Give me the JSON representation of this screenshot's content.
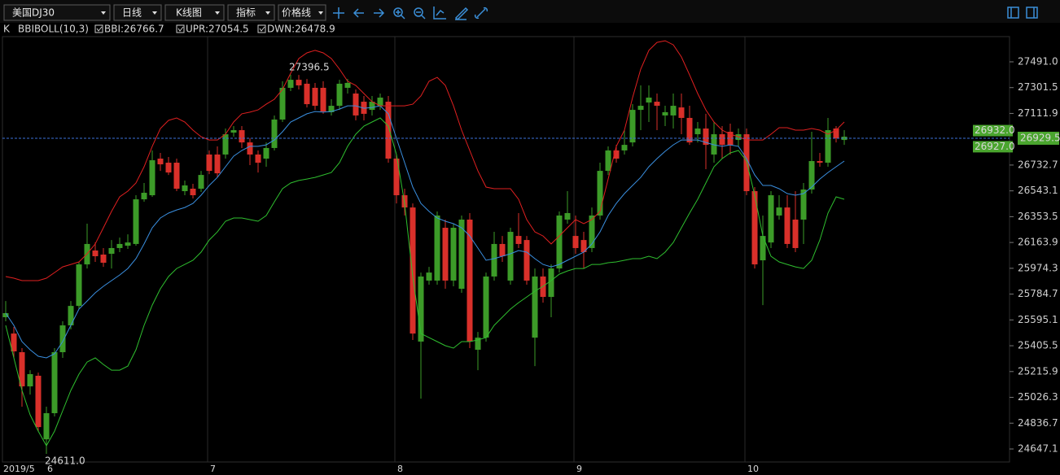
{
  "toolbar": {
    "symbol": "美国DJ30",
    "period": "日线",
    "chart_kind": "K线图",
    "indicator": "指标",
    "price_line": "价格线"
  },
  "chart_data": {
    "type": "candlestick",
    "main_label": "K",
    "indicator": "BBIBOLL(10,3)",
    "x_label": "2019/5",
    "up_color": "#3c9b28",
    "down_color": "#d9302a",
    "categories": [
      null,
      null,
      null,
      null,
      null,
      "6",
      null,
      null,
      null,
      null,
      null,
      null,
      null,
      null,
      null,
      null,
      null,
      null,
      null,
      null,
      null,
      null,
      null,
      null,
      null,
      "7",
      null,
      null,
      null,
      null,
      null,
      null,
      null,
      null,
      null,
      null,
      null,
      null,
      null,
      null,
      null,
      null,
      null,
      null,
      null,
      null,
      null,
      null,
      "8",
      null,
      null,
      null,
      null,
      null,
      null,
      null,
      null,
      null,
      null,
      null,
      null,
      null,
      null,
      null,
      null,
      null,
      null,
      null,
      null,
      null,
      "9",
      null,
      null,
      null,
      null,
      null,
      null,
      null,
      null,
      null,
      null,
      null,
      null,
      null,
      null,
      null,
      null,
      null,
      null,
      null,
      null,
      "10",
      null,
      null,
      null,
      null,
      null,
      null,
      null,
      null,
      null,
      null,
      null,
      null
    ],
    "open": [
      25615,
      25495,
      25358,
      25107,
      25185,
      24718,
      24910,
      25358,
      25555,
      25698,
      26003,
      26105,
      26075,
      26081,
      26123,
      26140,
      26153,
      26481,
      26511,
      26780,
      26750,
      26750,
      26541,
      26559,
      26559,
      26810,
      26810,
      26810,
      26971,
      26989,
      26899,
      26810,
      26780,
      26858,
      27067,
      27300,
      27359,
      27330,
      27300,
      27300,
      27121,
      27168,
      27300,
      27258,
      27198,
      27138,
      27168,
      27198,
      26780,
      26511,
      26421,
      25436,
      25884,
      25884,
      26272,
      25884,
      25824,
      26332,
      25376,
      25465,
      25914,
      26153,
      25884,
      26212,
      26182,
      25465,
      25914,
      25764,
      25973,
      26332,
      26212,
      26182,
      26123,
      26362,
      26690,
      26840,
      26840,
      26899,
      27138,
      27192,
      27198,
      27097,
      27097,
      27156,
      27079,
      26959,
      27001,
      26810,
      26959,
      26977,
      26917,
      26959,
      26541,
      26033,
      26164,
      26362,
      26421,
      26332,
      26332,
      26553,
      26762,
      26750,
      27001,
      26917
    ],
    "high": [
      25734,
      25543,
      25388,
      25226,
      25208,
      24958,
      25388,
      25585,
      25734,
      26021,
      26302,
      26164,
      26123,
      26182,
      26200,
      26224,
      26511,
      26601,
      26840,
      26822,
      26792,
      26780,
      26619,
      26595,
      26690,
      26840,
      26870,
      27001,
      27019,
      27019,
      26929,
      26840,
      26899,
      27097,
      27348,
      27396.5,
      27395,
      27365,
      27336,
      27348,
      27216,
      27359,
      27365,
      27288,
      27240,
      27240,
      27258,
      27240,
      26810,
      26559,
      26451,
      25943,
      25985,
      26392,
      26332,
      26302,
      26362,
      26380,
      25507,
      25943,
      26242,
      26212,
      26272,
      26380,
      26212,
      25973,
      25973,
      26003,
      26392,
      26541,
      26362,
      26242,
      26421,
      26750,
      26870,
      26881,
      26989,
      27180,
      27318,
      27318,
      27258,
      27168,
      27258,
      27258,
      27168,
      27049,
      27109,
      27049,
      27019,
      27037,
      27001,
      27001,
      26571,
      26362,
      26541,
      26511,
      26511,
      26541,
      26601,
      26977,
      26822,
      27079,
      27019,
      26989
    ],
    "low": [
      25585,
      25316,
      24958,
      25047,
      24778,
      24611,
      24886,
      25316,
      25525,
      25675,
      25973,
      26021,
      25985,
      25973,
      26093,
      26117,
      26140,
      26463,
      26499,
      26690,
      26660,
      26541,
      26511,
      26487,
      26535,
      26666,
      26642,
      26780,
      26941,
      26858,
      26732,
      26678,
      26720,
      26840,
      27049,
      27276,
      27288,
      27156,
      27138,
      27109,
      27097,
      27138,
      27258,
      27061,
      27061,
      27097,
      27138,
      26750,
      26451,
      26362,
      25448,
      25017,
      25854,
      25854,
      25824,
      25842,
      25794,
      25388,
      25226,
      25436,
      25884,
      26021,
      25854,
      26123,
      25854,
      25256,
      25722,
      25615,
      25943,
      26302,
      26081,
      25973,
      26093,
      26332,
      26660,
      26750,
      26810,
      26870,
      26989,
      27049,
      26989,
      27019,
      27001,
      26959,
      26881,
      26899,
      26702,
      26750,
      26780,
      26810,
      26870,
      26511,
      25973,
      25704,
      26123,
      26332,
      26123,
      26093,
      26153,
      26523,
      26720,
      26720,
      26899,
      26881
    ],
    "close": [
      25645,
      25364,
      25107,
      25197,
      24808,
      24910,
      25358,
      25555,
      25698,
      26003,
      26153,
      26063,
      26015,
      26123,
      26153,
      26164,
      26481,
      26529,
      26768,
      26738,
      26678,
      26559,
      26583,
      26511,
      26660,
      26690,
      26672,
      26959,
      26989,
      26899,
      26810,
      26750,
      26858,
      27067,
      27300,
      27359,
      27318,
      27180,
      27168,
      27126,
      27168,
      27330,
      27336,
      27097,
      27109,
      27198,
      27228,
      26780,
      26511,
      26421,
      25495,
      25914,
      25943,
      26362,
      25884,
      26272,
      26332,
      25436,
      25465,
      25914,
      26153,
      26063,
      26242,
      26153,
      25884,
      25914,
      25764,
      25973,
      26362,
      26380,
      26123,
      26093,
      26362,
      26690,
      26840,
      26780,
      26881,
      27138,
      27168,
      27228,
      27168,
      27121,
      27168,
      27079,
      26899,
      27001,
      26881,
      26959,
      26881,
      26881,
      26959,
      26541,
      26003,
      26212,
      26511,
      26421,
      26153,
      26123,
      26553,
      26762,
      26750,
      26989,
      26929,
      26941
    ],
    "series": [
      {
        "name": "BBI:26766.7",
        "color": "#3a8fe0",
        "values": [
          25645,
          25555,
          25436,
          25376,
          25328,
          25316,
          25346,
          25436,
          25555,
          25675,
          25734,
          25794,
          25842,
          25884,
          25925,
          25973,
          26045,
          26153,
          26272,
          26344,
          26380,
          26403,
          26421,
          26451,
          26511,
          26583,
          26642,
          26720,
          26798,
          26840,
          26870,
          26870,
          26881,
          26917,
          26977,
          27049,
          27079,
          27109,
          27126,
          27121,
          27126,
          27144,
          27168,
          27168,
          27150,
          27156,
          27168,
          27109,
          26929,
          26750,
          26571,
          26451,
          26392,
          26344,
          26320,
          26302,
          26272,
          26212,
          26123,
          26033,
          26045,
          26063,
          26081,
          26105,
          26093,
          26045,
          26003,
          25985,
          26003,
          26033,
          26063,
          26093,
          26153,
          26242,
          26362,
          26451,
          26523,
          26583,
          26642,
          26720,
          26780,
          26834,
          26881,
          26917,
          26917,
          26917,
          26899,
          26881,
          26870,
          26881,
          26870,
          26780,
          26660,
          26583,
          26583,
          26559,
          26523,
          26511,
          26523,
          26571,
          26630,
          26678,
          26720,
          26762
        ]
      },
      {
        "name": "UPR:27054.5",
        "color": "#e02020",
        "values": [
          25914,
          25902,
          25884,
          25884,
          25884,
          25902,
          25943,
          25985,
          26003,
          26021,
          26081,
          26153,
          26272,
          26392,
          26499,
          26541,
          26601,
          26720,
          26870,
          27001,
          27061,
          27079,
          27049,
          26989,
          26941,
          26917,
          26917,
          26959,
          27049,
          27109,
          27121,
          27138,
          27180,
          27216,
          27288,
          27407,
          27515,
          27557,
          27575,
          27557,
          27515,
          27437,
          27348,
          27318,
          27258,
          27198,
          27168,
          27168,
          27168,
          27168,
          27180,
          27240,
          27348,
          27377,
          27318,
          27168,
          26989,
          26840,
          26690,
          26571,
          26559,
          26559,
          26559,
          26481,
          26332,
          26242,
          26212,
          26153,
          26212,
          26272,
          26332,
          26302,
          26332,
          26392,
          26630,
          26870,
          26989,
          27228,
          27437,
          27575,
          27634,
          27646,
          27616,
          27527,
          27395,
          27258,
          27138,
          27049,
          26989,
          26959,
          26941,
          26917,
          26917,
          26917,
          26959,
          27007,
          27007,
          26989,
          26989,
          27001,
          26989,
          26959,
          26989,
          27049
        ]
      },
      {
        "name": "DWN:26478.9",
        "color": "#2fbf2f",
        "values": [
          25555,
          25316,
          25077,
          24898,
          24778,
          24671,
          24778,
          24928,
          25077,
          25197,
          25286,
          25316,
          25268,
          25226,
          25226,
          25256,
          25376,
          25555,
          25704,
          25824,
          25914,
          25973,
          26003,
          26033,
          26093,
          26182,
          26242,
          26320,
          26344,
          26344,
          26332,
          26320,
          26362,
          26463,
          26559,
          26601,
          26619,
          26630,
          26642,
          26660,
          26678,
          26750,
          26870,
          26959,
          27019,
          27049,
          27079,
          27019,
          26810,
          26451,
          25914,
          25495,
          25465,
          25436,
          25406,
          25388,
          25436,
          25436,
          25448,
          25465,
          25555,
          25615,
          25675,
          25722,
          25764,
          25806,
          25842,
          25884,
          25931,
          25955,
          25973,
          25973,
          26003,
          26003,
          26015,
          26021,
          26033,
          26045,
          26045,
          26063,
          26045,
          26093,
          26164,
          26272,
          26380,
          26481,
          26601,
          26720,
          26780,
          26822,
          26840,
          26762,
          26511,
          26212,
          26063,
          26021,
          26003,
          25985,
          25973,
          26033,
          26182,
          26380,
          26499,
          26481
        ]
      }
    ],
    "extreme_labels": {
      "high": "27396.5",
      "low": "24611.0"
    },
    "last_price": 26929.5,
    "ask": {
      "value": 26932,
      "label": "26932.0"
    },
    "bid": {
      "value": 26927,
      "label": "26927.0"
    },
    "ylim": [
      24551.5,
      27676.2
    ],
    "yticks": [
      {
        "value": 27491,
        "label": "27491.0"
      },
      27301.5,
      27111.9,
      26732.7,
      26543.1,
      26353.5,
      26163.9,
      25974.3,
      25784.7,
      25595.1,
      25405.5,
      25215.9,
      25026.3,
      24836.7,
      24647.1
    ]
  }
}
